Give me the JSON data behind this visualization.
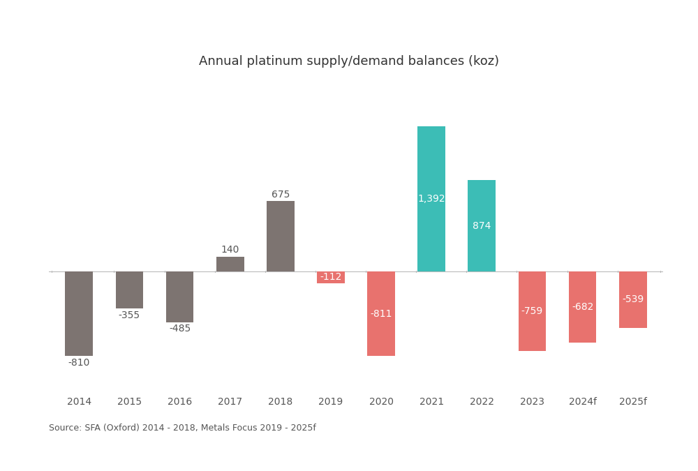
{
  "title": "Annual platinum supply/demand balances (koz)",
  "categories": [
    "2014",
    "2015",
    "2016",
    "2017",
    "2018",
    "2019",
    "2020",
    "2021",
    "2022",
    "2023",
    "2024f",
    "2025f"
  ],
  "values": [
    -810,
    -355,
    -485,
    140,
    675,
    -112,
    -811,
    1392,
    874,
    -759,
    -682,
    -539
  ],
  "bar_colors": [
    "#7d7471",
    "#7d7471",
    "#7d7471",
    "#7d7471",
    "#7d7471",
    "#e8726e",
    "#e8726e",
    "#3cbdb6",
    "#3cbdb6",
    "#e8726e",
    "#e8726e",
    "#e8726e"
  ],
  "source_text": "Source: SFA (Oxford) 2014 - 2018, Metals Focus 2019 - 2025f",
  "background_color": "#ffffff",
  "title_fontsize": 13,
  "label_fontsize": 10,
  "source_fontsize": 9,
  "tick_fontsize": 10,
  "ylim": [
    -1100,
    1700
  ],
  "bar_width": 0.55
}
